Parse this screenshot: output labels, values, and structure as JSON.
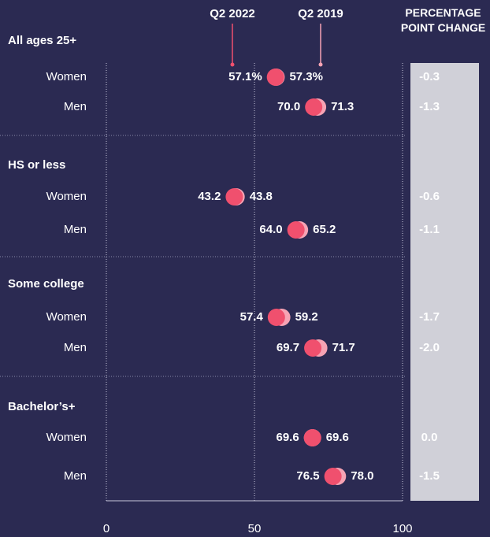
{
  "chart_data": {
    "type": "dot",
    "groups": [
      {
        "name": "All ages 25+",
        "categories": [
          "Women",
          "Men"
        ]
      },
      {
        "name": "HS or less",
        "categories": [
          "Women",
          "Men"
        ]
      },
      {
        "name": "Some college",
        "categories": [
          "Women",
          "Men"
        ]
      },
      {
        "name": "Bachelor’s+",
        "categories": [
          "Women",
          "Men"
        ]
      }
    ],
    "series": [
      {
        "name": "Q2 2019",
        "color": "#f6a3b4",
        "values": [
          57.3,
          71.3,
          43.8,
          65.2,
          59.2,
          71.7,
          69.6,
          78.0
        ],
        "value_labels": [
          "57.3%",
          "71.3",
          "43.8",
          "65.2",
          "59.2",
          "71.7",
          "69.6",
          "78.0"
        ]
      },
      {
        "name": "Q2 2022",
        "color": "#f0506e",
        "values": [
          57.1,
          70.0,
          43.2,
          64.0,
          57.4,
          69.7,
          69.6,
          76.5
        ],
        "value_labels": [
          "57.1%",
          "70.0",
          "43.2",
          "64.0",
          "57.4",
          "69.7",
          "69.6",
          "76.5"
        ]
      }
    ],
    "change": {
      "title": "PERCENTAGE POINT CHANGE",
      "values": [
        -0.3,
        -1.3,
        -0.6,
        -1.1,
        -1.7,
        -2.0,
        0.0,
        -1.5
      ],
      "value_labels": [
        "-0.3",
        "-1.3",
        "-0.6",
        "-1.1",
        "-1.7",
        "-2.0",
        "0.0",
        "-1.5"
      ]
    },
    "xlim": [
      0,
      100
    ],
    "xticks": [
      0,
      50,
      100
    ],
    "grid": true
  }
}
